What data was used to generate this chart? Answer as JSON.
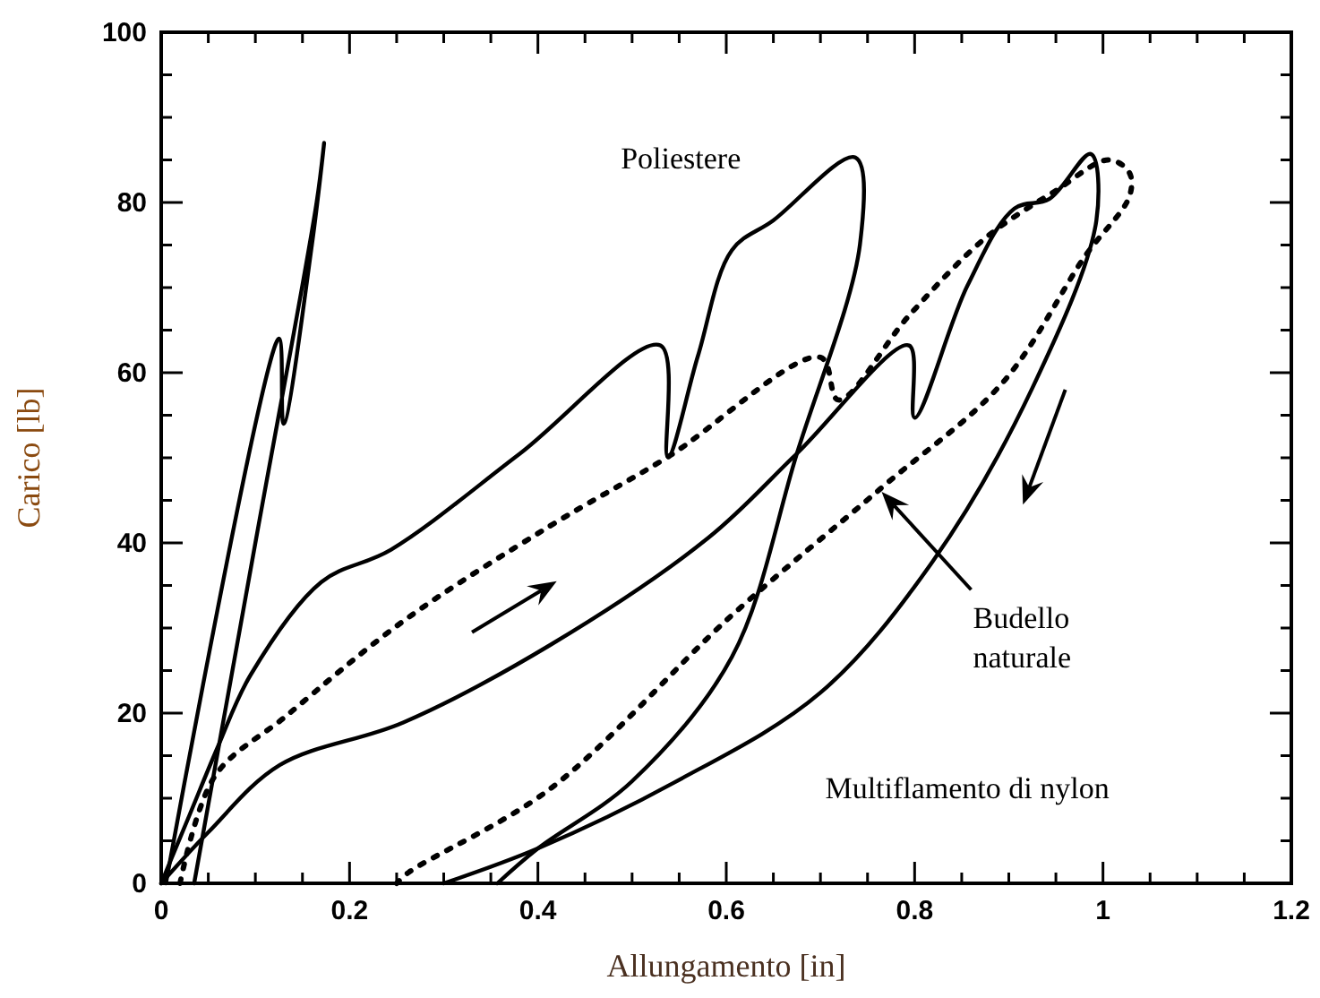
{
  "chart_data": {
    "type": "line",
    "xlabel": "Allungamento [in]",
    "ylabel": "Carico [lb]",
    "xlim": [
      0,
      1.2
    ],
    "ylim": [
      0,
      100
    ],
    "xticks": [
      0,
      {
        "value": 0.05,
        "label": null
      },
      {
        "value": 0.1,
        "label": null
      },
      {
        "value": 0.15,
        "label": null
      },
      0.2,
      {
        "value": 0.25,
        "label": null
      },
      {
        "value": 0.3,
        "label": null
      },
      {
        "value": 0.35,
        "label": null
      },
      0.4,
      {
        "value": 0.45,
        "label": null
      },
      {
        "value": 0.5,
        "label": null
      },
      {
        "value": 0.55,
        "label": null
      },
      0.6,
      {
        "value": 0.65,
        "label": null
      },
      {
        "value": 0.7,
        "label": null
      },
      {
        "value": 0.75,
        "label": null
      },
      0.8,
      {
        "value": 0.85,
        "label": null
      },
      {
        "value": 0.9,
        "label": null
      },
      {
        "value": 0.95,
        "label": null
      },
      1,
      {
        "value": 1.05,
        "label": null
      },
      {
        "value": 1.1,
        "label": null
      },
      {
        "value": 1.15,
        "label": null
      },
      1.2
    ],
    "yticks": [
      0,
      {
        "value": 5,
        "label": null
      },
      {
        "value": 10,
        "label": null
      },
      {
        "value": 15,
        "label": null
      },
      20,
      {
        "value": 25,
        "label": null
      },
      {
        "value": 30,
        "label": null
      },
      {
        "value": 35,
        "label": null
      },
      40,
      {
        "value": 45,
        "label": null
      },
      {
        "value": 50,
        "label": null
      },
      {
        "value": 55,
        "label": null
      },
      60,
      {
        "value": 65,
        "label": null
      },
      {
        "value": 70,
        "label": null
      },
      {
        "value": 75,
        "label": null
      },
      80,
      {
        "value": 85,
        "label": null
      },
      {
        "value": 90,
        "label": null
      },
      {
        "value": 95,
        "label": null
      },
      100
    ],
    "grid": false,
    "marker": "none",
    "series": [
      {
        "color": "#000000",
        "line_style": "solid",
        "x": [
          0.005,
          0.125,
          0.13,
          0.16,
          0.173,
          0.165,
          0.1,
          0.035
        ],
        "values": [
          0,
          64,
          54,
          75,
          87,
          80,
          40,
          0
        ]
      },
      {
        "name": "Poliestere",
        "color": "#000000",
        "line_style": "solid",
        "x": [
          0,
          0.03,
          0.06,
          0.095,
          0.17,
          0.244,
          0.381,
          0.53,
          0.538,
          0.57,
          0.606,
          0.65,
          0.737,
          0.742,
          0.675,
          0.606,
          0.5,
          0.4,
          0.357
        ],
        "values": [
          0,
          8,
          16,
          24.5,
          35.4,
          39.2,
          50.5,
          63.2,
          50.1,
          62,
          74.4,
          77.9,
          85.3,
          75.1,
          50.5,
          26.6,
          12,
          4.1,
          0
        ]
      },
      {
        "name": "Budello naturale",
        "color": "#000000",
        "line_style": "dotted",
        "x": [
          0.02,
          0.057,
          0.132,
          0.257,
          0.413,
          0.538,
          0.7,
          0.719,
          0.794,
          0.875,
          0.95,
          1.006,
          1.028,
          1.028,
          0.981,
          0.894,
          0.763,
          0.606,
          0.413,
          0.263,
          0.25
        ],
        "values": [
          0,
          12.6,
          19.6,
          30.8,
          42,
          50.1,
          61.8,
          56.8,
          66.7,
          75.8,
          81.4,
          85,
          83.5,
          80.7,
          73.7,
          58.9,
          46.3,
          31.5,
          11.1,
          1.3,
          0
        ]
      },
      {
        "name": "Multiflamento di nylon",
        "color": "#000000",
        "line_style": "solid",
        "x": [
          0,
          0.05,
          0.126,
          0.257,
          0.413,
          0.581,
          0.675,
          0.794,
          0.8,
          0.856,
          0.906,
          0.943,
          0.987,
          0.993,
          0.925,
          0.819,
          0.7,
          0.544,
          0.4,
          0.3
        ],
        "values": [
          0,
          6,
          13.9,
          18.9,
          28,
          40.6,
          50.5,
          63.2,
          54.7,
          70.2,
          79.3,
          80.4,
          85.7,
          77.9,
          58.2,
          37.8,
          22.4,
          11.8,
          4.1,
          0
        ]
      }
    ]
  }
}
